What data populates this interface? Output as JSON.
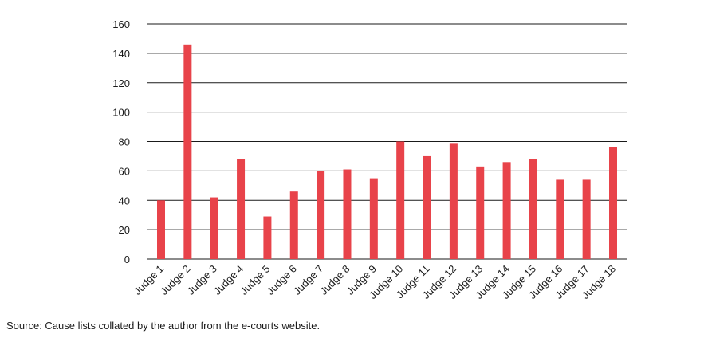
{
  "chart_data": {
    "type": "bar",
    "categories": [
      "Judge 1",
      "Judge 2",
      "Judge 3",
      "Judge 4",
      "Judge 5",
      "Judge 6",
      "Judge 7",
      "Judge 8",
      "Judge 9",
      "Judge 10",
      "Judge 11",
      "Judge 12",
      "Judge 13",
      "Judge 14",
      "Judge 15",
      "Judge 16",
      "Judge 17",
      "Judge 18"
    ],
    "values": [
      40,
      146,
      42,
      68,
      29,
      46,
      60,
      61,
      55,
      80,
      70,
      79,
      63,
      66,
      68,
      54,
      54,
      76
    ],
    "title": "",
    "xlabel": "",
    "ylabel": "",
    "ylim": [
      0,
      160
    ],
    "yticks": [
      0,
      20,
      40,
      60,
      80,
      100,
      120,
      140,
      160
    ],
    "grid": true,
    "bar_color": "#e8434a"
  },
  "source_note": "Source: Cause lists collated by the author from the e-courts website."
}
